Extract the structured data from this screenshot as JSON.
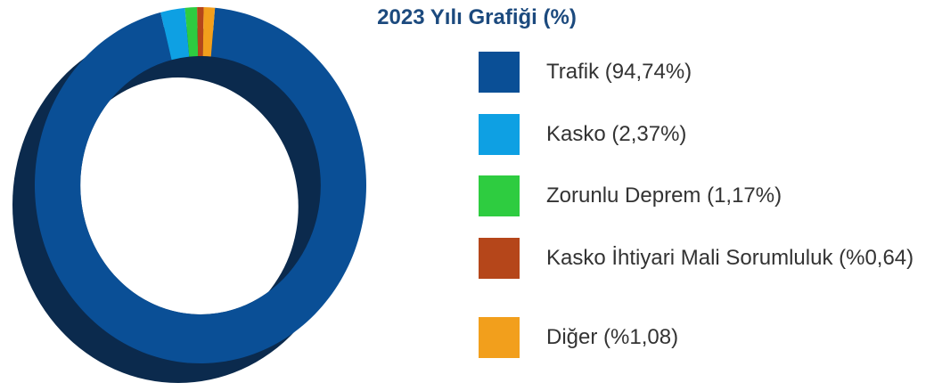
{
  "chart_data": {
    "type": "pie",
    "title": "2023 Yılı Grafiği (%)",
    "categories": [
      "Trafik (94,74%)",
      "Kasko (2,37%)",
      "Zorunlu Deprem (1,17%)",
      "Kasko İhtiyari Mali Sorumluluk (%0,64)",
      "Diğer (%1,08)"
    ],
    "values": [
      94.74,
      2.37,
      1.17,
      0.64,
      1.08
    ],
    "colors": [
      "#0a4f96",
      "#0ea0e3",
      "#2ecc40",
      "#b5461a",
      "#f29f1c"
    ]
  }
}
